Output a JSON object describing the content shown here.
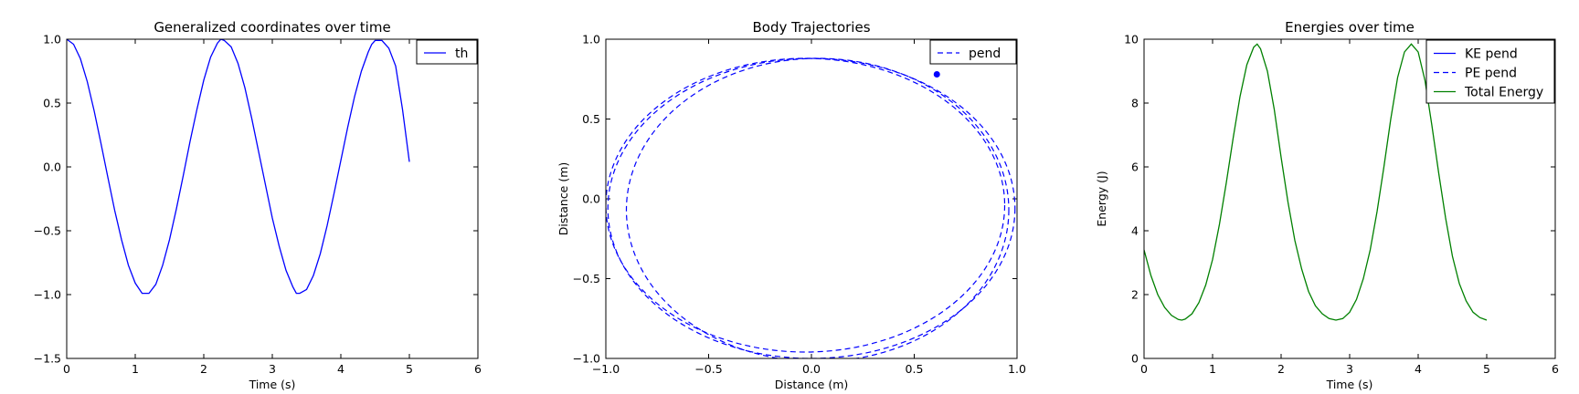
{
  "figure": {
    "background": "#ffffff"
  },
  "chart_data": [
    {
      "type": "line",
      "title": "Generalized coordinates over time",
      "xlabel": "Time (s)",
      "ylabel": "",
      "xlim": [
        0,
        6
      ],
      "ylim": [
        -1.5,
        1.0
      ],
      "xticks": [
        0,
        1,
        2,
        3,
        4,
        5,
        6
      ],
      "yticks": [
        -1.5,
        -1.0,
        -0.5,
        0.0,
        0.5,
        1.0
      ],
      "xtick_labels": [
        "0",
        "1",
        "2",
        "3",
        "4",
        "5",
        "6"
      ],
      "ytick_labels": [
        "−1.5",
        "−1.0",
        "−0.5",
        "0.0",
        "0.5",
        "1.0"
      ],
      "legend_position": "top-right",
      "grid": false,
      "series": [
        {
          "name": "th",
          "color": "#0000ff",
          "style": "solid",
          "points": [
            [
              0,
              1.0
            ],
            [
              0.1,
              0.961
            ],
            [
              0.2,
              0.847
            ],
            [
              0.3,
              0.668
            ],
            [
              0.4,
              0.44
            ],
            [
              0.5,
              0.184
            ],
            [
              0.6,
              -0.08
            ],
            [
              0.7,
              -0.34
            ],
            [
              0.8,
              -0.57
            ],
            [
              0.9,
              -0.77
            ],
            [
              1.0,
              -0.91
            ],
            [
              1.1,
              -0.99
            ],
            [
              1.2,
              -0.99
            ],
            [
              1.3,
              -0.92
            ],
            [
              1.4,
              -0.77
            ],
            [
              1.5,
              -0.57
            ],
            [
              1.6,
              -0.33
            ],
            [
              1.7,
              -0.07
            ],
            [
              1.8,
              0.2
            ],
            [
              1.9,
              0.45
            ],
            [
              2.0,
              0.68
            ],
            [
              2.1,
              0.86
            ],
            [
              2.2,
              0.97
            ],
            [
              2.25,
              1.0
            ],
            [
              2.3,
              0.99
            ],
            [
              2.4,
              0.94
            ],
            [
              2.5,
              0.81
            ],
            [
              2.6,
              0.62
            ],
            [
              2.7,
              0.38
            ],
            [
              2.8,
              0.12
            ],
            [
              2.9,
              -0.14
            ],
            [
              3.0,
              -0.4
            ],
            [
              3.1,
              -0.62
            ],
            [
              3.2,
              -0.81
            ],
            [
              3.3,
              -0.94
            ],
            [
              3.35,
              -0.99
            ],
            [
              3.4,
              -0.99
            ],
            [
              3.5,
              -0.96
            ],
            [
              3.6,
              -0.85
            ],
            [
              3.7,
              -0.68
            ],
            [
              3.8,
              -0.46
            ],
            [
              3.9,
              -0.21
            ],
            [
              4.0,
              0.05
            ],
            [
              4.1,
              0.31
            ],
            [
              4.2,
              0.55
            ],
            [
              4.3,
              0.75
            ],
            [
              4.4,
              0.9
            ],
            [
              4.45,
              0.96
            ],
            [
              4.5,
              0.99
            ],
            [
              4.6,
              0.99
            ],
            [
              4.7,
              0.93
            ],
            [
              4.8,
              0.79
            ],
            [
              4.9,
              0.45
            ],
            [
              5.0,
              0.04
            ]
          ]
        }
      ]
    },
    {
      "type": "line",
      "title": "Body Trajectories",
      "xlabel": "Distance (m)",
      "ylabel": "Distance (m)",
      "xlim": [
        -1.0,
        1.0
      ],
      "ylim": [
        -1.0,
        1.0
      ],
      "xticks": [
        -1.0,
        -0.5,
        0.0,
        0.5,
        1.0
      ],
      "yticks": [
        -1.0,
        -0.5,
        0.0,
        0.5,
        1.0
      ],
      "xtick_labels": [
        "−1.0",
        "−0.5",
        "0.0",
        "0.5",
        "1.0"
      ],
      "ytick_labels": [
        "−1.0",
        "−0.5",
        "0.0",
        "0.5",
        "1.0"
      ],
      "legend_position": "top-right",
      "grid": false,
      "series": [
        {
          "name": "pend",
          "color": "#0000ff",
          "style": "dashed",
          "loops": [
            {
              "cx": 0.0,
              "cy": -0.06,
              "rx": 0.99,
              "ry": 0.94
            },
            {
              "cx": -0.03,
              "cy": -0.04,
              "rx": 0.97,
              "ry": 0.92
            },
            {
              "cx": 0.03,
              "cy": -0.07,
              "rx": 0.93,
              "ry": 0.95
            }
          ],
          "endpoint": [
            0.61,
            0.78
          ]
        }
      ]
    },
    {
      "type": "line",
      "title": "Energies over time",
      "xlabel": "Time (s)",
      "ylabel": "Energy (J)",
      "xlim": [
        0,
        6
      ],
      "ylim": [
        0,
        10
      ],
      "xticks": [
        0,
        1,
        2,
        3,
        4,
        5,
        6
      ],
      "yticks": [
        0,
        2,
        4,
        6,
        8,
        10
      ],
      "xtick_labels": [
        "0",
        "1",
        "2",
        "3",
        "4",
        "5",
        "6"
      ],
      "ytick_labels": [
        "0",
        "2",
        "4",
        "6",
        "8",
        "10"
      ],
      "legend_position": "top-right",
      "grid": false,
      "series": [
        {
          "name": "KE pend",
          "color": "#0000ff",
          "style": "solid",
          "visible": false,
          "points": []
        },
        {
          "name": "PE pend",
          "color": "#0000ff",
          "style": "dashed",
          "visible": false,
          "points": []
        },
        {
          "name": "Total Energy",
          "color": "#008000",
          "style": "solid",
          "points": [
            [
              0,
              3.4
            ],
            [
              0.1,
              2.6
            ],
            [
              0.2,
              2.0
            ],
            [
              0.3,
              1.6
            ],
            [
              0.4,
              1.35
            ],
            [
              0.5,
              1.22
            ],
            [
              0.55,
              1.2
            ],
            [
              0.6,
              1.23
            ],
            [
              0.7,
              1.4
            ],
            [
              0.8,
              1.75
            ],
            [
              0.9,
              2.3
            ],
            [
              1.0,
              3.1
            ],
            [
              1.1,
              4.2
            ],
            [
              1.2,
              5.5
            ],
            [
              1.3,
              6.9
            ],
            [
              1.4,
              8.2
            ],
            [
              1.5,
              9.2
            ],
            [
              1.6,
              9.75
            ],
            [
              1.65,
              9.85
            ],
            [
              1.7,
              9.7
            ],
            [
              1.8,
              9.0
            ],
            [
              1.9,
              7.8
            ],
            [
              2.0,
              6.3
            ],
            [
              2.1,
              4.9
            ],
            [
              2.2,
              3.7
            ],
            [
              2.3,
              2.8
            ],
            [
              2.4,
              2.1
            ],
            [
              2.5,
              1.65
            ],
            [
              2.6,
              1.4
            ],
            [
              2.7,
              1.25
            ],
            [
              2.8,
              1.2
            ],
            [
              2.9,
              1.25
            ],
            [
              3.0,
              1.45
            ],
            [
              3.1,
              1.85
            ],
            [
              3.2,
              2.5
            ],
            [
              3.3,
              3.4
            ],
            [
              3.4,
              4.6
            ],
            [
              3.5,
              6.0
            ],
            [
              3.6,
              7.5
            ],
            [
              3.7,
              8.8
            ],
            [
              3.8,
              9.6
            ],
            [
              3.9,
              9.85
            ],
            [
              4.0,
              9.6
            ],
            [
              4.1,
              8.7
            ],
            [
              4.2,
              7.3
            ],
            [
              4.3,
              5.8
            ],
            [
              4.4,
              4.4
            ],
            [
              4.5,
              3.2
            ],
            [
              4.6,
              2.35
            ],
            [
              4.7,
              1.8
            ],
            [
              4.8,
              1.45
            ],
            [
              4.9,
              1.28
            ],
            [
              5.0,
              1.2
            ]
          ]
        }
      ]
    }
  ]
}
